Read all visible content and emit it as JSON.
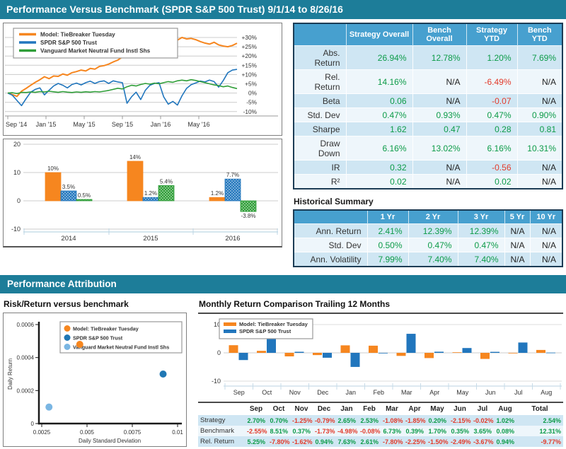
{
  "header": {
    "title": "Performance Versus Benchmark (SPDR S&P 500 Trust) 9/1/14 to 8/26/16"
  },
  "colors": {
    "teal_bar": "#1d7d99",
    "table_header_blue": "#47a0cf",
    "row_light_blue": "#cfe6f3",
    "row_white": "#eef6fb",
    "positive_text": "#0c9b48",
    "negative_text": "#e23a2a",
    "na_text": "#222222",
    "orange": "#f6861f",
    "blue": "#2176bd",
    "green": "#2f9e38",
    "light_blue_point": "#7ab6e3"
  },
  "stats_table": {
    "columns": [
      "Strategy Overall",
      "Bench Overall",
      "Strategy YTD",
      "Bench YTD"
    ],
    "rows": [
      {
        "label": "Abs. Return",
        "values": [
          "26.94%",
          "12.78%",
          "1.20%",
          "7.69%"
        ]
      },
      {
        "label": "Rel. Return",
        "values": [
          "14.16%",
          "N/A",
          "-6.49%",
          "N/A"
        ]
      },
      {
        "label": "Beta",
        "values": [
          "0.06",
          "N/A",
          "-0.07",
          "N/A"
        ]
      },
      {
        "label": "Std. Dev",
        "values": [
          "0.47%",
          "0.93%",
          "0.47%",
          "0.90%"
        ]
      },
      {
        "label": "Sharpe",
        "values": [
          "1.62",
          "0.47",
          "0.28",
          "0.81"
        ]
      },
      {
        "label": "Draw Down",
        "values": [
          "6.16%",
          "13.02%",
          "6.16%",
          "10.31%"
        ]
      },
      {
        "label": "IR",
        "values": [
          "0.32",
          "N/A",
          "-0.56",
          "N/A"
        ]
      },
      {
        "label": "R²",
        "values": [
          "0.02",
          "N/A",
          "0.02",
          "N/A"
        ]
      }
    ]
  },
  "historical": {
    "title": "Historical Summary",
    "columns": [
      "1 Yr",
      "2 Yr",
      "3 Yr",
      "5 Yr",
      "10 Yr"
    ],
    "rows": [
      {
        "label": "Ann. Return",
        "values": [
          "2.41%",
          "12.39%",
          "12.39%",
          "N/A",
          "N/A"
        ]
      },
      {
        "label": "Std. Dev",
        "values": [
          "0.50%",
          "0.47%",
          "0.47%",
          "N/A",
          "N/A"
        ]
      },
      {
        "label": "Ann. Volatility",
        "values": [
          "7.99%",
          "7.40%",
          "7.40%",
          "N/A",
          "N/A"
        ]
      }
    ]
  },
  "attribution": {
    "title": "Performance Attribution"
  },
  "scatter_section": {
    "title": "Risk/Return versus benchmark"
  },
  "monthly_section": {
    "title": "Monthly Return Comparison Trailing 12 Months",
    "table": {
      "columns": [
        "Sep",
        "Oct",
        "Nov",
        "Dec",
        "Jan",
        "Feb",
        "Mar",
        "Apr",
        "May",
        "Jun",
        "Jul",
        "Aug",
        "Total"
      ],
      "rows": [
        {
          "label": "Strategy",
          "values": [
            "2.70%",
            "0.70%",
            "-1.25%",
            "-0.79%",
            "2.65%",
            "2.53%",
            "-1.08%",
            "-1.85%",
            "0.20%",
            "-2.15%",
            "-0.02%",
            "1.02%",
            "2.54%"
          ]
        },
        {
          "label": "Benchmark",
          "values": [
            "-2.55%",
            "8.51%",
            "0.37%",
            "-1.73%",
            "-4.98%",
            "-0.08%",
            "6.73%",
            "0.39%",
            "1.70%",
            "0.35%",
            "3.65%",
            "0.08%",
            "12.31%"
          ]
        },
        {
          "label": "Rel. Return",
          "values": [
            "5.25%",
            "-7.80%",
            "-1.62%",
            "0.94%",
            "7.63%",
            "2.61%",
            "-7.80%",
            "-2.25%",
            "-1.50%",
            "-2.49%",
            "-3.67%",
            "0.94%",
            "-9.77%"
          ]
        }
      ]
    }
  },
  "chart_data": [
    {
      "type": "line",
      "title": "Cumulative return versus benchmark",
      "ylim": [
        -10,
        30
      ],
      "yticks": [
        {
          "v": 30,
          "label": "+30%"
        },
        {
          "v": 25,
          "label": "+25%"
        },
        {
          "v": 20,
          "label": "+20%"
        },
        {
          "v": 15,
          "label": "+15%"
        },
        {
          "v": 10,
          "label": "+10%"
        },
        {
          "v": 5,
          "label": "+5%"
        },
        {
          "v": 0,
          "label": "0%"
        },
        {
          "v": -5,
          "label": "-5%"
        },
        {
          "v": -10,
          "label": "-10%"
        }
      ],
      "months_span": 24,
      "xticks": [
        {
          "m": 0,
          "label": "Sep '14"
        },
        {
          "m": 4,
          "label": "Jan '15"
        },
        {
          "m": 8,
          "label": "May '15"
        },
        {
          "m": 12,
          "label": "Sep '15"
        },
        {
          "m": 16,
          "label": "Jan '16"
        },
        {
          "m": 20,
          "label": "May '16"
        }
      ],
      "legend_position": "top-left",
      "grid": true,
      "series": [
        {
          "name": "Model: TieBreaker Tuesday",
          "color": "#f6861f",
          "width": 2,
          "values": [
            0,
            -0.8,
            -1.8,
            1.0,
            2.5,
            4.2,
            5.8,
            7.2,
            8.8,
            7.8,
            9.2,
            9.0,
            10.3,
            9.6,
            11.0,
            11.6,
            12.4,
            11.9,
            13.3,
            12.9,
            14.4,
            14.8,
            15.6,
            16.8,
            17.8,
            19.5,
            22.0,
            23.5,
            24.8,
            24.2,
            25.5,
            24.6,
            24.9,
            26.0,
            24.3,
            27.5,
            30.2,
            28.6,
            30.0,
            29.2,
            29.5,
            28.8,
            27.8,
            27.0,
            26.4,
            27.4,
            26.0,
            25.4,
            25.0,
            25.7,
            26.9
          ]
        },
        {
          "name": "SPDR S&P 500 Trust",
          "color": "#2176bd",
          "width": 1.6,
          "values": [
            0,
            -1.2,
            -4.0,
            -6.8,
            -3.0,
            0.5,
            2.0,
            2.8,
            -1.0,
            1.5,
            3.8,
            5.2,
            4.2,
            2.8,
            4.6,
            5.4,
            4.4,
            5.6,
            6.4,
            5.2,
            6.2,
            6.6,
            5.2,
            6.6,
            6.0,
            5.6,
            -5.5,
            -2.0,
            0.5,
            -3.5,
            1.5,
            4.2,
            5.2,
            5.6,
            -2.0,
            -6.0,
            -4.5,
            -6.5,
            -1.5,
            2.5,
            4.5,
            5.5,
            6.5,
            6.0,
            7.0,
            6.2,
            3.2,
            6.8,
            11.0,
            12.4,
            12.8
          ]
        },
        {
          "name": "Vanguard Market Neutral Fund Instl Shs",
          "color": "#2f9e38",
          "width": 1.6,
          "values": [
            0,
            0.2,
            -0.3,
            0.4,
            0.3,
            0.6,
            0.4,
            0.8,
            0.6,
            1.0,
            0.7,
            0.4,
            0.8,
            0.5,
            0.3,
            0.6,
            0.4,
            0.7,
            0.5,
            0.8,
            0.6,
            1.0,
            1.4,
            2.0,
            2.6,
            2.2,
            3.4,
            4.2,
            3.8,
            4.6,
            5.2,
            4.8,
            5.4,
            5.0,
            5.6,
            6.2,
            5.8,
            6.6,
            7.0,
            6.6,
            7.2,
            6.8,
            6.2,
            5.6,
            5.0,
            4.4,
            4.0,
            3.4,
            3.8,
            3.0,
            2.4
          ]
        }
      ]
    },
    {
      "type": "bar",
      "title": "Annual returns",
      "categories": [
        "2014",
        "2015",
        "2016"
      ],
      "yticks": [
        20,
        10,
        0,
        -10
      ],
      "ylim": [
        -10,
        20
      ],
      "grid": true,
      "series": [
        {
          "name": "Model: TieBreaker Tuesday",
          "color": "#f6861f",
          "pattern": false,
          "values": [
            10,
            14,
            1.2
          ],
          "labels": [
            "10%",
            "14%",
            "1.2%"
          ]
        },
        {
          "name": "SPDR S&P 500 Trust",
          "color": "#2176bd",
          "pattern": true,
          "values": [
            3.5,
            1.2,
            7.7
          ],
          "labels": [
            "3.5%",
            "1.2%",
            "7.7%"
          ]
        },
        {
          "name": "Vanguard Market Neutral Fund Instl Shs",
          "color": "#2f9e38",
          "pattern": true,
          "values": [
            0.5,
            5.4,
            -3.8
          ],
          "labels": [
            "0.5%",
            "5.4%",
            "-3.8%"
          ]
        }
      ]
    },
    {
      "type": "scatter",
      "title": "Risk/Return versus benchmark",
      "xlabel": "Daily Standard Deviation",
      "ylabel": "Daily Return",
      "xlim": [
        0.0025,
        0.01
      ],
      "ylim": [
        0,
        0.0006
      ],
      "xticks": [
        {
          "v": 0.0025,
          "label": "0.0025"
        },
        {
          "v": 0.005,
          "label": "0.005"
        },
        {
          "v": 0.0075,
          "label": "0.0075"
        },
        {
          "v": 0.01,
          "label": "0.01"
        }
      ],
      "yticks": [
        {
          "v": 0,
          "label": "0"
        },
        {
          "v": 0.0002,
          "label": "0.0002"
        },
        {
          "v": 0.0004,
          "label": "0.0004"
        },
        {
          "v": 0.0006,
          "label": "0.0006"
        }
      ],
      "legend_position": "top-right",
      "points": [
        {
          "name": "Model: TieBreaker Tuesday",
          "x": 0.0046,
          "y": 0.00048,
          "color": "#f6861f"
        },
        {
          "name": "SPDR S&P 500 Trust",
          "x": 0.0092,
          "y": 0.0003,
          "color": "#1f77b4"
        },
        {
          "name": "Vanguard Market Neutral Fund Instl Shs",
          "x": 0.0029,
          "y": 0.0001,
          "color": "#7ab6e3"
        }
      ]
    },
    {
      "type": "bar",
      "title": "Monthly Return Comparison Trailing 12 Months",
      "categories": [
        "Sep",
        "Oct",
        "Nov",
        "Dec",
        "Jan",
        "Feb",
        "Mar",
        "Apr",
        "May",
        "Jun",
        "Jul",
        "Aug"
      ],
      "yticks": [
        10,
        0,
        -10
      ],
      "ylim": [
        -10,
        10
      ],
      "legend_position": "top-left",
      "series": [
        {
          "name": "Model: TieBreaker Tuesday",
          "color": "#f6861f",
          "values": [
            2.7,
            0.7,
            -1.25,
            -0.79,
            2.65,
            2.53,
            -1.08,
            -1.85,
            0.2,
            -2.15,
            -0.02,
            1.02
          ]
        },
        {
          "name": "SPDR S&P 500 Trust",
          "color": "#2176bd",
          "values": [
            -2.55,
            8.51,
            0.37,
            -1.73,
            -4.98,
            -0.08,
            6.73,
            0.39,
            1.7,
            0.35,
            3.65,
            0.08
          ]
        }
      ]
    }
  ]
}
